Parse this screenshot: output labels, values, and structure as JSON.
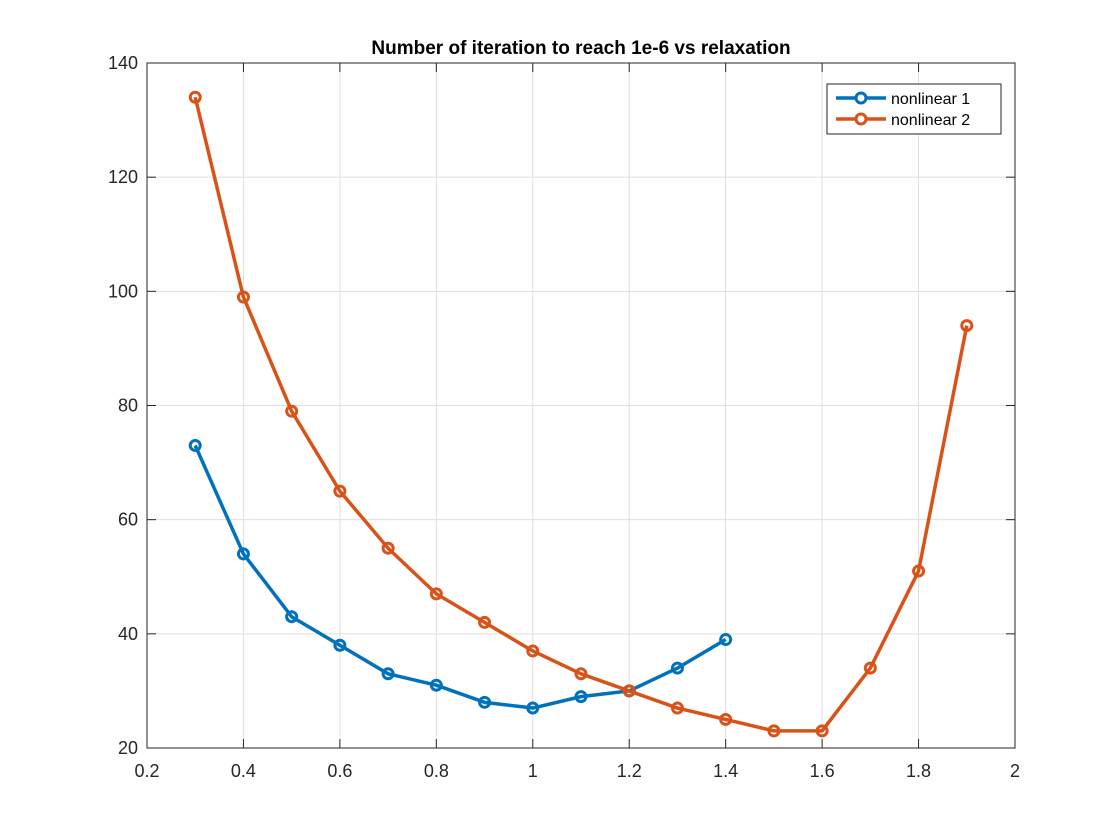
{
  "chart_data": {
    "type": "line",
    "title": "Number of iteration to reach 1e-6 vs relaxation",
    "xlabel": "",
    "ylabel": "",
    "xlim": [
      0.2,
      2
    ],
    "ylim": [
      20,
      140
    ],
    "xticks": [
      0.2,
      0.4,
      0.6,
      0.8,
      1,
      1.2,
      1.4,
      1.6,
      1.8,
      2
    ],
    "xtick_labels": [
      "0.2",
      "0.4",
      "0.6",
      "0.8",
      "1",
      "1.2",
      "1.4",
      "1.6",
      "1.8",
      "2"
    ],
    "yticks": [
      20,
      40,
      60,
      80,
      100,
      120,
      140
    ],
    "ytick_labels": [
      "20",
      "40",
      "60",
      "80",
      "100",
      "120",
      "140"
    ],
    "grid": true,
    "legend_position": "top-right",
    "marker": "circle",
    "series": [
      {
        "name": "nonlinear 1",
        "color": "#0072BD",
        "x": [
          0.3,
          0.4,
          0.5,
          0.6,
          0.7,
          0.8,
          0.9,
          1.0,
          1.1,
          1.2,
          1.3,
          1.4
        ],
        "y": [
          73,
          54,
          43,
          38,
          33,
          31,
          28,
          27,
          29,
          30,
          34,
          39
        ]
      },
      {
        "name": "nonlinear 2",
        "color": "#D95319",
        "x": [
          0.3,
          0.4,
          0.5,
          0.6,
          0.7,
          0.8,
          0.9,
          1.0,
          1.1,
          1.2,
          1.3,
          1.4,
          1.5,
          1.6,
          1.7,
          1.8,
          1.9
        ],
        "y": [
          134,
          99,
          79,
          65,
          55,
          47,
          42,
          37,
          33,
          30,
          27,
          25,
          23,
          23,
          34,
          51,
          94
        ]
      }
    ]
  }
}
